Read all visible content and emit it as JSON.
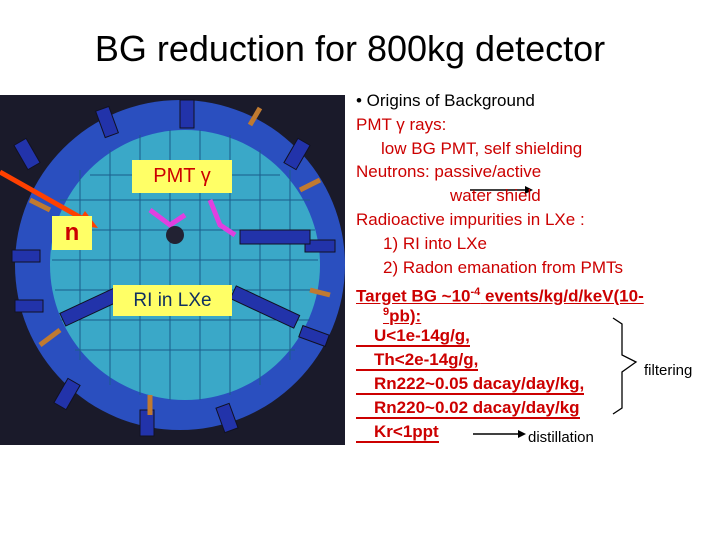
{
  "title": "BG reduction for 800kg detector",
  "figure": {
    "pmt_label": "PMT γ",
    "n_label": "n",
    "ri_label": "RI in LXe"
  },
  "lines": [
    "• Origins of Background",
    "PMT γ rays:",
    "low BG PMT, self shielding",
    "Neutrons: passive/active",
    "water shield",
    "Radioactive impurities in LXe :",
    "1) RI into LXe",
    "2) Radon emanation from PMTs"
  ],
  "target": {
    "part1": "Target BG ~10",
    "sup1": "-4",
    "part2": "events/kg/d/keV(10-",
    "sup2": "9",
    "part3": "pb):"
  },
  "limits": [
    "U<1e-14g/g,",
    "Th<2e-14g/g,",
    "Rn222~0.05 dacay/day/kg,",
    "Rn220~0.02 dacay/day/kg",
    "Kr<1ppt"
  ],
  "notes": {
    "filtering": "filtering",
    "distillation": "distillation"
  }
}
